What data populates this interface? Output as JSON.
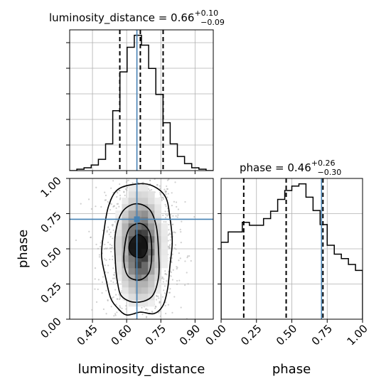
{
  "chart_data": [
    {
      "type": "histogram",
      "panel": "luminosity_distance",
      "title_main": "luminosity_distance = 0.66",
      "title_plus": "+0.10",
      "title_minus": "−0.09",
      "xlim": [
        0.35,
        0.98
      ],
      "bin_edges": [
        0.35,
        0.3815,
        0.413,
        0.4445,
        0.476,
        0.5075,
        0.539,
        0.5705,
        0.602,
        0.6335,
        0.665,
        0.6965,
        0.728,
        0.7595,
        0.791,
        0.8225,
        0.854,
        0.8855,
        0.917,
        0.9485,
        0.98
      ],
      "counts": [
        0,
        2,
        4,
        8,
        16,
        38,
        85,
        140,
        175,
        192,
        178,
        145,
        108,
        68,
        38,
        20,
        10,
        4,
        2,
        0
      ],
      "quantiles": [
        0.57,
        0.66,
        0.76
      ],
      "truth": 0.645,
      "colors": {
        "step": "#000000",
        "truth": "#4682b4",
        "quantile": "#000000"
      }
    },
    {
      "type": "histogram2d",
      "panel": "luminosity_distance-vs-phase",
      "xlabel": "luminosity_distance",
      "ylabel": "phase",
      "xlim": [
        0.35,
        0.98
      ],
      "ylim": [
        0.0,
        1.0
      ],
      "xticks": [
        "0.45",
        "0.60",
        "0.75",
        "0.90"
      ],
      "xtick_values": [
        0.45,
        0.6,
        0.75,
        0.9
      ],
      "yticks": [
        "0.00",
        "0.25",
        "0.50",
        "0.75",
        "1.00"
      ],
      "ytick_values": [
        0.0,
        0.25,
        0.5,
        0.75,
        1.0
      ],
      "truth": [
        0.645,
        0.71
      ],
      "peak": [
        0.66,
        0.52
      ],
      "colors": {
        "truth": "#4682b4",
        "contour": "#000000",
        "scatter": "#aaaaaa"
      }
    },
    {
      "type": "histogram",
      "panel": "phase",
      "title_main": "phase = 0.46",
      "title_plus": "+0.26",
      "title_minus": "−0.30",
      "xlabel": "phase",
      "xlim": [
        0.0,
        1.0
      ],
      "xticks": [
        "0.00",
        "0.25",
        "0.50",
        "0.75",
        "1.00"
      ],
      "xtick_values": [
        0.0,
        0.25,
        0.5,
        0.75,
        1.0
      ],
      "bin_edges": [
        0.0,
        0.05,
        0.1,
        0.15,
        0.2,
        0.25,
        0.3,
        0.35,
        0.4,
        0.45,
        0.5,
        0.55,
        0.6,
        0.65,
        0.7,
        0.75,
        0.8,
        0.85,
        0.9,
        0.95,
        1.0
      ],
      "counts": [
        104,
        118,
        118,
        131,
        127,
        127,
        136,
        146,
        162,
        174,
        180,
        183,
        165,
        147,
        128,
        100,
        88,
        82,
        74,
        66
      ],
      "quantiles": [
        0.16,
        0.46,
        0.72
      ],
      "truth": 0.71,
      "colors": {
        "step": "#000000",
        "truth": "#4682b4",
        "quantile": "#000000"
      }
    }
  ]
}
